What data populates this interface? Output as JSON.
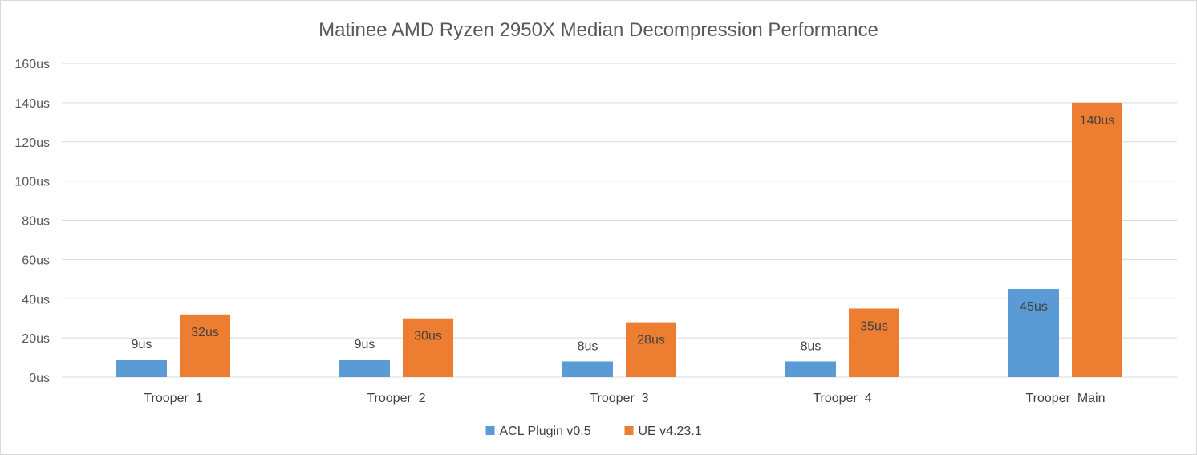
{
  "chart_data": {
    "type": "bar",
    "title": "Matinee AMD Ryzen 2950X Median Decompression  Performance",
    "categories": [
      "Trooper_1",
      "Trooper_2",
      "Trooper_3",
      "Trooper_4",
      "Trooper_Main"
    ],
    "series": [
      {
        "name": "ACL Plugin v0.5",
        "color": "#5b9bd5",
        "values": [
          9,
          9,
          8,
          8,
          45
        ],
        "labels": [
          "9us",
          "9us",
          "8us",
          "8us",
          "45us"
        ]
      },
      {
        "name": "UE v4.23.1",
        "color": "#ed7d31",
        "values": [
          32,
          30,
          28,
          35,
          140
        ],
        "labels": [
          "32us",
          "30us",
          "28us",
          "35us",
          "140us"
        ]
      }
    ],
    "ylim": [
      0,
      160
    ],
    "yticks": [
      "0us",
      "20us",
      "40us",
      "60us",
      "80us",
      "100us",
      "120us",
      "140us",
      "160us"
    ],
    "grid": true,
    "legend": "bottom-center"
  }
}
